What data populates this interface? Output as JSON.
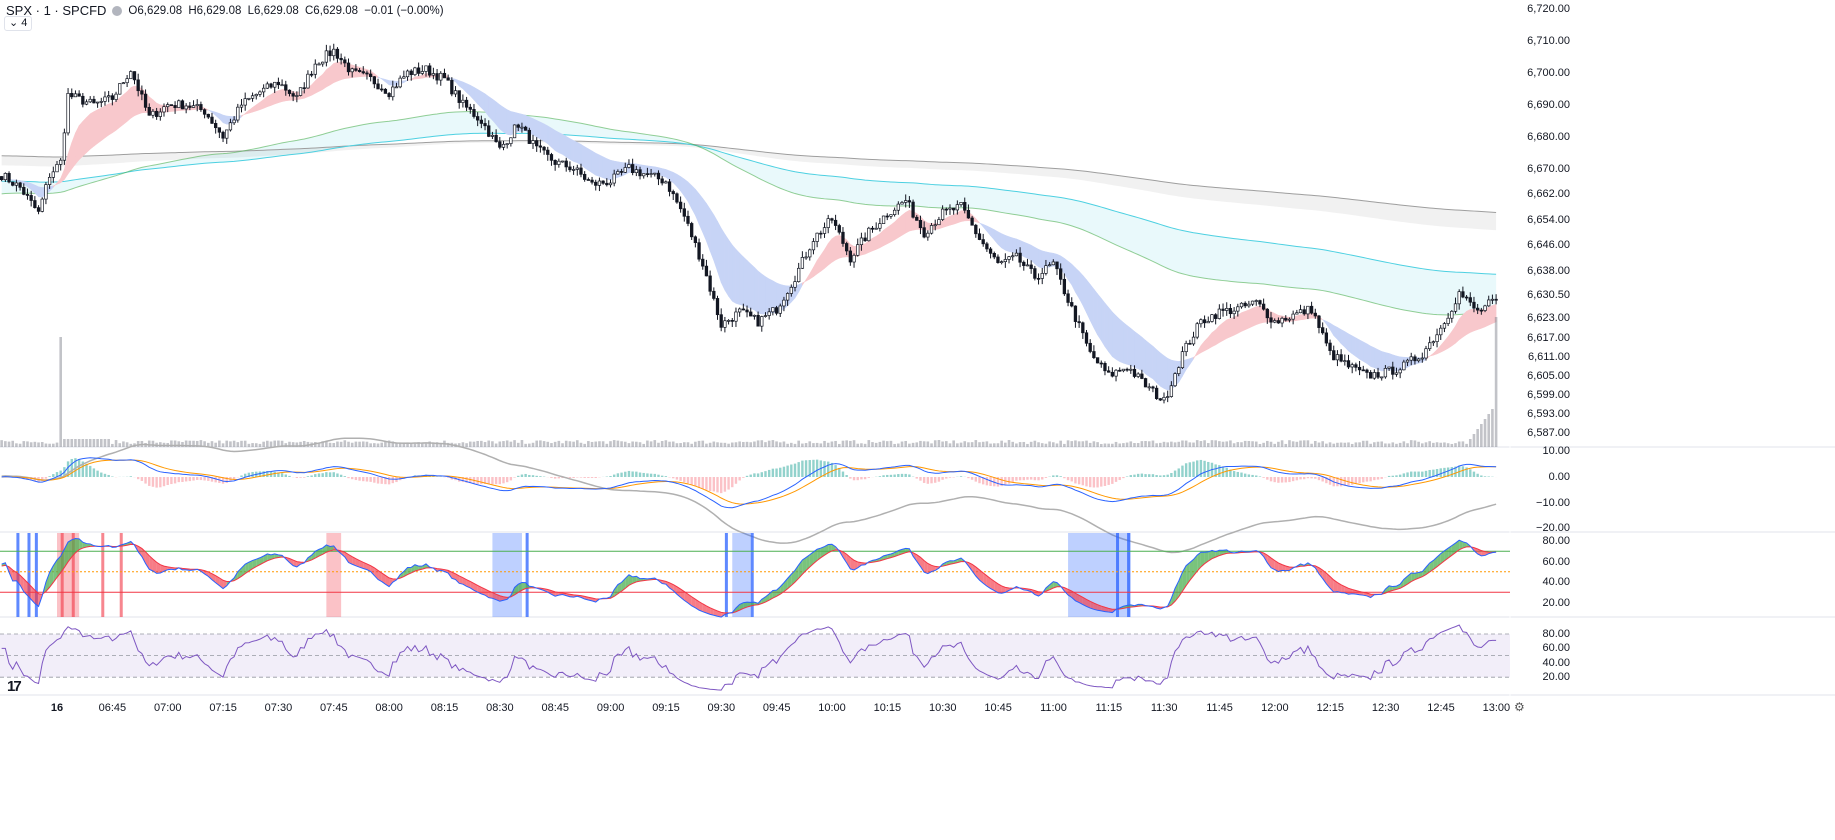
{
  "legend": {
    "symbol": "SPX · 1 · SPCFD",
    "open": "O6,629.08",
    "high": "H6,629.08",
    "low": "L6,629.08",
    "close": "C6,629.08",
    "change": "−0.01 (−0.00%)",
    "collapse_label": "⌄ 4"
  },
  "colors": {
    "up_fill": "#ffffff",
    "down_fill": "#131722",
    "blue_band": "#c7d4f6",
    "pink_band": "#f8c8cc",
    "cyan": "#4dd0e1",
    "gray": "#9e9e9e",
    "macd": "#2962ff",
    "signal": "#ff9800",
    "stoch_hi": "#4caf50",
    "stoch_lo": "#f23645",
    "rsi": "#7e57c2"
  },
  "chart_data": {
    "type": "candlestick",
    "price_axis_labels": [
      "6,720.00",
      "6,710.00",
      "6,700.00",
      "6,690.00",
      "6,680.00",
      "6,670.00",
      "6,662.00",
      "6,654.00",
      "6,646.00",
      "6,638.00",
      "6,630.50",
      "6,623.00",
      "6,617.00",
      "6,611.00",
      "6,605.00",
      "6,599.00",
      "6,593.00",
      "6,587.00"
    ],
    "price_axis_values": [
      6720,
      6710,
      6700,
      6690,
      6680,
      6670,
      6662,
      6654,
      6646,
      6638,
      6630.5,
      6623,
      6617,
      6611,
      6605,
      6599,
      6593,
      6587
    ],
    "macd_axis_labels": [
      "10.00",
      "0.00",
      "−10.00",
      "−20.00"
    ],
    "macd_axis_values": [
      10,
      0,
      -10,
      -20
    ],
    "stoch_axis_labels": [
      "80.00",
      "60.00",
      "40.00",
      "20.00"
    ],
    "stoch_axis_values": [
      80,
      60,
      40,
      20
    ],
    "rsi_axis_labels": [
      "80.00",
      "60.00",
      "40.00",
      "20.00"
    ],
    "rsi_axis_values": [
      80,
      60,
      40,
      20
    ],
    "time_labels": [
      "16",
      "06:45",
      "07:00",
      "07:15",
      "07:30",
      "07:45",
      "08:00",
      "08:15",
      "08:30",
      "08:45",
      "09:00",
      "09:15",
      "09:30",
      "09:45",
      "10:00",
      "10:15",
      "10:30",
      "10:45",
      "11:00",
      "11:15",
      "11:30",
      "11:45",
      "12:00",
      "12:15",
      "12:30",
      "12:45",
      "13:00"
    ],
    "price_path": [
      [
        "06:15",
        6668
      ],
      [
        "06:20",
        6664
      ],
      [
        "06:25",
        6656
      ],
      [
        "06:28",
        6668
      ],
      [
        "06:31",
        6672
      ],
      [
        "06:33",
        6693
      ],
      [
        "06:40",
        6690
      ],
      [
        "06:45",
        6692
      ],
      [
        "06:50",
        6701
      ],
      [
        "06:55",
        6686
      ],
      [
        "07:00",
        6690
      ],
      [
        "07:05",
        6690
      ],
      [
        "07:10",
        6688
      ],
      [
        "07:15",
        6680
      ],
      [
        "07:20",
        6690
      ],
      [
        "07:25",
        6694
      ],
      [
        "07:30",
        6697
      ],
      [
        "07:35",
        6692
      ],
      [
        "07:40",
        6703
      ],
      [
        "07:45",
        6707
      ],
      [
        "07:50",
        6700
      ],
      [
        "07:55",
        6698
      ],
      [
        "08:00",
        6694
      ],
      [
        "08:05",
        6700
      ],
      [
        "08:10",
        6701
      ],
      [
        "08:15",
        6698
      ],
      [
        "08:20",
        6690
      ],
      [
        "08:25",
        6685
      ],
      [
        "08:30",
        6676
      ],
      [
        "08:35",
        6684
      ],
      [
        "08:40",
        6676
      ],
      [
        "08:45",
        6672
      ],
      [
        "08:50",
        6670
      ],
      [
        "08:55",
        6665
      ],
      [
        "09:00",
        6666
      ],
      [
        "09:05",
        6670
      ],
      [
        "09:10",
        6668
      ],
      [
        "09:15",
        6666
      ],
      [
        "09:20",
        6655
      ],
      [
        "09:25",
        6640
      ],
      [
        "09:30",
        6621
      ],
      [
        "09:35",
        6625
      ],
      [
        "09:40",
        6622
      ],
      [
        "09:45",
        6626
      ],
      [
        "09:50",
        6636
      ],
      [
        "09:55",
        6648
      ],
      [
        "10:00",
        6654
      ],
      [
        "10:05",
        6642
      ],
      [
        "10:10",
        6650
      ],
      [
        "10:15",
        6656
      ],
      [
        "10:20",
        6660
      ],
      [
        "10:25",
        6650
      ],
      [
        "10:30",
        6656
      ],
      [
        "10:35",
        6658
      ],
      [
        "10:40",
        6648
      ],
      [
        "10:45",
        6640
      ],
      [
        "10:50",
        6642
      ],
      [
        "10:55",
        6636
      ],
      [
        "11:00",
        6640
      ],
      [
        "11:05",
        6626
      ],
      [
        "11:10",
        6612
      ],
      [
        "11:15",
        6605
      ],
      [
        "11:20",
        6608
      ],
      [
        "11:25",
        6602
      ],
      [
        "11:30",
        6597
      ],
      [
        "11:35",
        6612
      ],
      [
        "11:40",
        6622
      ],
      [
        "11:45",
        6625
      ],
      [
        "11:50",
        6626
      ],
      [
        "11:55",
        6628
      ],
      [
        "12:00",
        6622
      ],
      [
        "12:05",
        6624
      ],
      [
        "12:10",
        6626
      ],
      [
        "12:15",
        6612
      ],
      [
        "12:20",
        6608
      ],
      [
        "12:25",
        6605
      ],
      [
        "12:30",
        6606
      ],
      [
        "12:35",
        6608
      ],
      [
        "12:40",
        6612
      ],
      [
        "12:45",
        6620
      ],
      [
        "12:50",
        6631
      ],
      [
        "12:55",
        6625
      ],
      [
        "13:00",
        6629
      ]
    ],
    "stoch_blue_zones": [
      [
        "08:28",
        "08:36"
      ],
      [
        "09:33",
        "09:38"
      ],
      [
        "11:04",
        "11:21"
      ]
    ],
    "stoch_blue_lines": [
      "06:19",
      "06:22",
      "06:24",
      "08:37",
      "09:31",
      "09:38",
      "11:17",
      "11:20"
    ],
    "stoch_red_zones": [
      [
        "06:30",
        "06:36"
      ],
      [
        "07:43",
        "07:47"
      ]
    ],
    "stoch_red_lines": [
      "06:31",
      "06:34",
      "06:42",
      "06:47"
    ]
  }
}
